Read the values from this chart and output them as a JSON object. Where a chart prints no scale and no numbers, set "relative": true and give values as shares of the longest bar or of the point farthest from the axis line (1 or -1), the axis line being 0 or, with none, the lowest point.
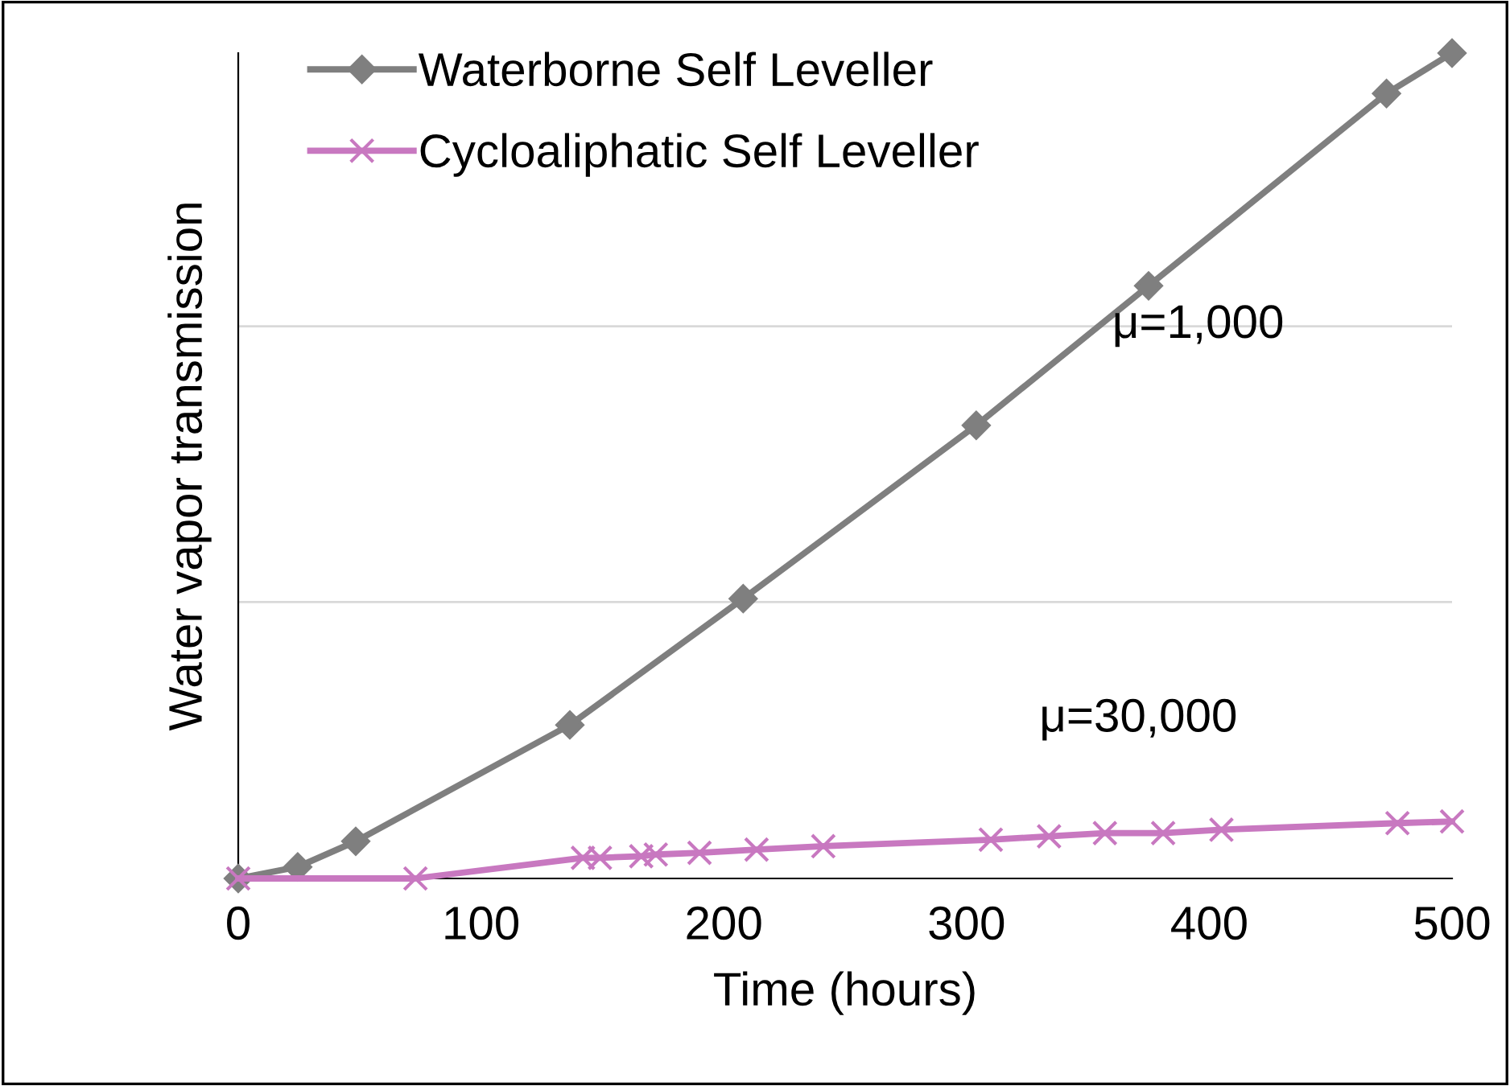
{
  "chart_data": {
    "type": "line",
    "relative": true,
    "xlabel": "Time (hours)",
    "ylabel": "Water vapor transmission",
    "xlim": [
      0,
      500
    ],
    "xticks": [
      0,
      100,
      200,
      300,
      400,
      500
    ],
    "ref_lines": [
      {
        "axis": "y",
        "value": 0.335,
        "color": "#d9d9d9"
      },
      {
        "axis": "y",
        "value": 0.669,
        "color": "#d9d9d9"
      }
    ],
    "legend": "top left",
    "tick_labels": "x",
    "annotations": [
      "μ=1,000",
      "μ=30,000"
    ],
    "series": [
      {
        "name": "Waterborne Self Leveller",
        "color": "#7f7f7f",
        "marker": "diamond",
        "x": [
          0,
          24.5,
          48.4,
          136.6,
          208,
          304,
          375,
          473,
          500
        ],
        "values": [
          0,
          0.014,
          0.045,
          0.186,
          0.339,
          0.549,
          0.718,
          0.951,
          1.0
        ]
      },
      {
        "name": "Cycloaliphatic Self Leveller",
        "color": "#c878c0",
        "marker": "cross",
        "x": [
          0,
          73,
          142,
          149,
          166,
          172,
          190,
          213.5,
          241,
          310,
          334,
          357,
          381,
          405,
          477.5,
          500
        ],
        "values": [
          0,
          0,
          0.025,
          0.025,
          0.027,
          0.029,
          0.031,
          0.035,
          0.039,
          0.047,
          0.051,
          0.055,
          0.055,
          0.059,
          0.067,
          0.069
        ]
      }
    ]
  }
}
